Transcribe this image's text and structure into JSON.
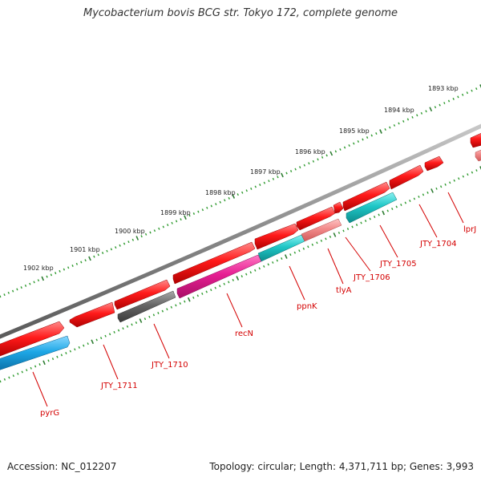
{
  "title": "Mycobacterium bovis BCG str. Tokyo 172, complete genome",
  "footer": {
    "accession": "Accession: NC_012207",
    "stats": "Topology: circular; Length: 4,371,711 bp; Genes: 3,993"
  },
  "colors": {
    "backbone": "#8a8a8a",
    "tick_major": "#2e7d32",
    "tick_minor": "#2e9a2e",
    "label": "#d40000",
    "red": "#e41414",
    "pink_light": "#f08080",
    "magenta": "#e0188c",
    "cyan": "#1fc6c6",
    "blue": "#1ea7e6",
    "gray": "#666666"
  },
  "kbp_labels": [
    "1893 kbp",
    "1894 kbp",
    "1895 kbp",
    "1896 kbp",
    "1897 kbp",
    "1898 kbp",
    "1899 kbp",
    "1900 kbp",
    "1901 kbp",
    "1902 kbp"
  ],
  "gene_labels": [
    "lprJ",
    "JTY_1704",
    "JTY_1705",
    "JTY_1706",
    "tlyA",
    "ppnK",
    "recN",
    "JTY_1710",
    "JTY_1711",
    "pyrG"
  ]
}
